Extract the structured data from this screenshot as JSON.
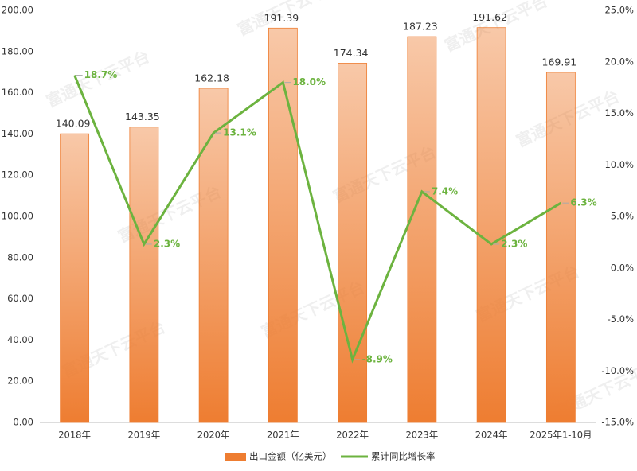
{
  "chart_data": {
    "type": "bar_line",
    "watermark": "富通天下云平台",
    "categories": [
      "2018年",
      "2019年",
      "2020年",
      "2021年",
      "2022年",
      "2023年",
      "2024年",
      "2025年1-10月"
    ],
    "series": [
      {
        "name": "出口金额（亿美元）",
        "type": "bar",
        "color": "#ee7d31",
        "values": [
          140.09,
          143.35,
          162.18,
          191.39,
          174.34,
          187.23,
          191.62,
          169.91
        ]
      },
      {
        "name": "累计同比增长率",
        "type": "line",
        "axis": "y2",
        "color": "#6cb33f",
        "values": [
          18.7,
          2.3,
          13.1,
          18.0,
          -8.9,
          7.4,
          2.3,
          6.3
        ],
        "value_labels": [
          "18.7%",
          "2.3%",
          "13.1%",
          "18.0%",
          "-8.9%",
          "7.4%",
          "2.3%",
          "6.3%"
        ]
      }
    ],
    "ylim": [
      0,
      200
    ],
    "yticks": [
      {
        "value": 0,
        "label": "0.00"
      },
      {
        "value": 20,
        "label": "20.00"
      },
      {
        "value": 40,
        "label": "40.00"
      },
      {
        "value": 60,
        "label": "60.00"
      },
      {
        "value": 80,
        "label": "80.00"
      },
      {
        "value": 100,
        "label": "100.00"
      },
      {
        "value": 120,
        "label": "120.00"
      },
      {
        "value": 140,
        "label": "140.00"
      },
      {
        "value": 160,
        "label": "160.00"
      },
      {
        "value": 180,
        "label": "180.00"
      },
      {
        "value": 200,
        "label": "200.00"
      }
    ],
    "y2lim": [
      -15,
      25
    ],
    "y2ticks": [
      {
        "value": -15,
        "label": "-15.0%"
      },
      {
        "value": -10,
        "label": "-10.0%"
      },
      {
        "value": -5,
        "label": "-5.0%"
      },
      {
        "value": 0,
        "label": "0.0%"
      },
      {
        "value": 5,
        "label": "5.0%"
      },
      {
        "value": 10,
        "label": "10.0%"
      },
      {
        "value": 15,
        "label": "15.0%"
      },
      {
        "value": 20,
        "label": "20.0%"
      },
      {
        "value": 25,
        "label": "25.0%"
      }
    ],
    "grid": false
  }
}
